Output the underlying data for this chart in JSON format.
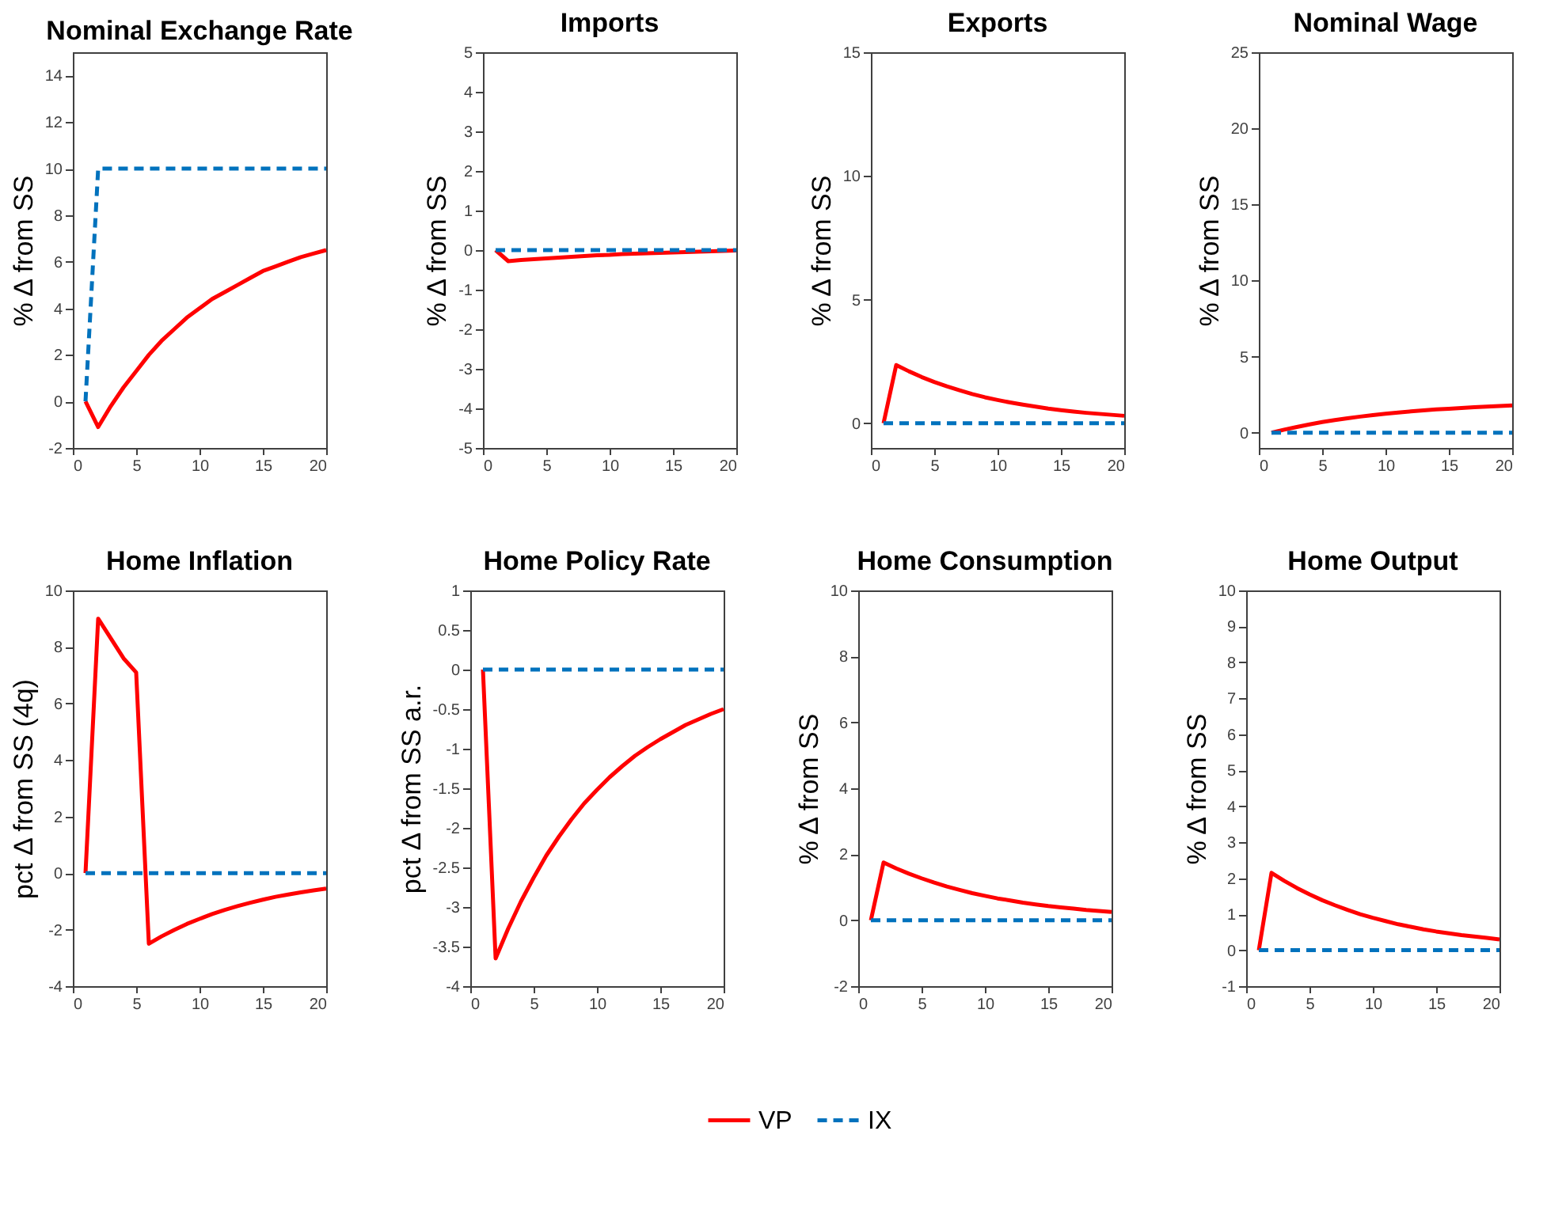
{
  "chart_data": [
    {
      "type": "line",
      "title": "Nominal Exchange Rate",
      "ylabel": "% Δ from SS",
      "x": [
        1,
        2,
        3,
        4,
        5,
        6,
        7,
        8,
        9,
        10,
        11,
        12,
        13,
        14,
        15,
        16,
        17,
        18,
        19,
        20
      ],
      "xlim": [
        0,
        20
      ],
      "xticks": [
        0,
        5,
        10,
        15,
        20
      ],
      "ylim": [
        -2,
        15
      ],
      "yticks": [
        -2,
        0,
        2,
        4,
        6,
        8,
        10,
        12,
        14
      ],
      "grid": false,
      "legend": "bottom",
      "series": [
        {
          "name": "VP",
          "color": "#ff0000",
          "line_style": "solid",
          "values": [
            0,
            -1.1,
            -0.2,
            0.6,
            1.3,
            2.0,
            2.6,
            3.1,
            3.6,
            4.0,
            4.4,
            4.7,
            5.0,
            5.3,
            5.6,
            5.8,
            6.0,
            6.2,
            6.35,
            6.5
          ]
        },
        {
          "name": "IX",
          "color": "#0072bd",
          "line_style": "dashed",
          "values": [
            0,
            10,
            10,
            10,
            10,
            10,
            10,
            10,
            10,
            10,
            10,
            10,
            10,
            10,
            10,
            10,
            10,
            10,
            10,
            10
          ]
        }
      ]
    },
    {
      "type": "line",
      "title": "Imports",
      "ylabel": "% Δ from SS",
      "x": [
        1,
        2,
        3,
        4,
        5,
        6,
        7,
        8,
        9,
        10,
        11,
        12,
        13,
        14,
        15,
        16,
        17,
        18,
        19,
        20
      ],
      "xlim": [
        0,
        20
      ],
      "xticks": [
        0,
        5,
        10,
        15,
        20
      ],
      "ylim": [
        -5,
        5
      ],
      "yticks": [
        -5,
        -4,
        -3,
        -2,
        -1,
        0,
        1,
        2,
        3,
        4,
        5
      ],
      "grid": false,
      "legend": "bottom",
      "series": [
        {
          "name": "VP",
          "color": "#ff0000",
          "line_style": "solid",
          "values": [
            0,
            -0.28,
            -0.25,
            -0.23,
            -0.21,
            -0.19,
            -0.17,
            -0.15,
            -0.13,
            -0.12,
            -0.1,
            -0.09,
            -0.08,
            -0.07,
            -0.06,
            -0.05,
            -0.04,
            -0.03,
            -0.02,
            -0.01
          ]
        },
        {
          "name": "IX",
          "color": "#0072bd",
          "line_style": "dashed",
          "values": [
            0,
            0,
            0,
            0,
            0,
            0,
            0,
            0,
            0,
            0,
            0,
            0,
            0,
            0,
            0,
            0,
            0,
            0,
            0,
            0
          ]
        }
      ]
    },
    {
      "type": "line",
      "title": "Exports",
      "ylabel": "% Δ from SS",
      "x": [
        1,
        2,
        3,
        4,
        5,
        6,
        7,
        8,
        9,
        10,
        11,
        12,
        13,
        14,
        15,
        16,
        17,
        18,
        19,
        20
      ],
      "xlim": [
        0,
        20
      ],
      "xticks": [
        0,
        5,
        10,
        15,
        20
      ],
      "ylim": [
        -1,
        15
      ],
      "yticks": [
        0,
        5,
        10,
        15
      ],
      "grid": false,
      "legend": "bottom",
      "series": [
        {
          "name": "VP",
          "color": "#ff0000",
          "line_style": "solid",
          "values": [
            0,
            2.35,
            2.1,
            1.87,
            1.67,
            1.49,
            1.33,
            1.18,
            1.05,
            0.94,
            0.84,
            0.75,
            0.67,
            0.59,
            0.53,
            0.47,
            0.42,
            0.38,
            0.34,
            0.3
          ]
        },
        {
          "name": "IX",
          "color": "#0072bd",
          "line_style": "dashed",
          "values": [
            0,
            0,
            0,
            0,
            0,
            0,
            0,
            0,
            0,
            0,
            0,
            0,
            0,
            0,
            0,
            0,
            0,
            0,
            0,
            0
          ]
        }
      ]
    },
    {
      "type": "line",
      "title": "Nominal Wage",
      "ylabel": "% Δ from SS",
      "x": [
        1,
        2,
        3,
        4,
        5,
        6,
        7,
        8,
        9,
        10,
        11,
        12,
        13,
        14,
        15,
        16,
        17,
        18,
        19,
        20
      ],
      "xlim": [
        0,
        20
      ],
      "xticks": [
        0,
        5,
        10,
        15,
        20
      ],
      "ylim": [
        -1,
        25
      ],
      "yticks": [
        0,
        5,
        10,
        15,
        20,
        25
      ],
      "grid": false,
      "legend": "bottom",
      "series": [
        {
          "name": "VP",
          "color": "#ff0000",
          "line_style": "solid",
          "values": [
            0,
            0.2,
            0.38,
            0.55,
            0.7,
            0.83,
            0.95,
            1.06,
            1.16,
            1.25,
            1.33,
            1.4,
            1.47,
            1.53,
            1.58,
            1.63,
            1.68,
            1.72,
            1.76,
            1.8
          ]
        },
        {
          "name": "IX",
          "color": "#0072bd",
          "line_style": "dashed",
          "values": [
            0,
            0,
            0,
            0,
            0,
            0,
            0,
            0,
            0,
            0,
            0,
            0,
            0,
            0,
            0,
            0,
            0,
            0,
            0,
            0
          ]
        }
      ]
    },
    {
      "type": "line",
      "title": "Home Inflation",
      "ylabel": "pct  Δ from SS (4q)",
      "x": [
        1,
        2,
        3,
        4,
        5,
        6,
        7,
        8,
        9,
        10,
        11,
        12,
        13,
        14,
        15,
        16,
        17,
        18,
        19,
        20
      ],
      "xlim": [
        0,
        20
      ],
      "xticks": [
        0,
        5,
        10,
        15,
        20
      ],
      "ylim": [
        -4,
        10
      ],
      "yticks": [
        -4,
        -2,
        0,
        2,
        4,
        6,
        8,
        10
      ],
      "grid": false,
      "legend": "bottom",
      "series": [
        {
          "name": "VP",
          "color": "#ff0000",
          "line_style": "solid",
          "values": [
            0,
            9.0,
            8.3,
            7.6,
            7.1,
            -2.5,
            -2.24,
            -2.01,
            -1.8,
            -1.62,
            -1.45,
            -1.3,
            -1.17,
            -1.05,
            -0.94,
            -0.84,
            -0.76,
            -0.68,
            -0.61,
            -0.55
          ]
        },
        {
          "name": "IX",
          "color": "#0072bd",
          "line_style": "dashed",
          "values": [
            0,
            0,
            0,
            0,
            0,
            0,
            0,
            0,
            0,
            0,
            0,
            0,
            0,
            0,
            0,
            0,
            0,
            0,
            0,
            0
          ]
        }
      ]
    },
    {
      "type": "line",
      "title": "Home Policy Rate",
      "ylabel": "pct  Δ from SS a.r.",
      "x": [
        1,
        2,
        3,
        4,
        5,
        6,
        7,
        8,
        9,
        10,
        11,
        12,
        13,
        14,
        15,
        16,
        17,
        18,
        19,
        20
      ],
      "xlim": [
        0,
        20
      ],
      "xticks": [
        0,
        5,
        10,
        15,
        20
      ],
      "ylim": [
        -4,
        1
      ],
      "yticks": [
        -4,
        -3.5,
        -3,
        -2.5,
        -2,
        -1.5,
        -1,
        -0.5,
        0,
        0.5,
        1
      ],
      "grid": false,
      "legend": "bottom",
      "series": [
        {
          "name": "VP",
          "color": "#ff0000",
          "line_style": "solid",
          "values": [
            0,
            -3.65,
            -3.27,
            -2.93,
            -2.63,
            -2.35,
            -2.11,
            -1.89,
            -1.69,
            -1.52,
            -1.36,
            -1.22,
            -1.09,
            -0.98,
            -0.88,
            -0.79,
            -0.7,
            -0.63,
            -0.56,
            -0.5
          ]
        },
        {
          "name": "IX",
          "color": "#0072bd",
          "line_style": "dashed",
          "values": [
            0,
            0,
            0,
            0,
            0,
            0,
            0,
            0,
            0,
            0,
            0,
            0,
            0,
            0,
            0,
            0,
            0,
            0,
            0,
            0
          ]
        }
      ]
    },
    {
      "type": "line",
      "title": "Home Consumption",
      "ylabel": "% Δ from SS",
      "x": [
        1,
        2,
        3,
        4,
        5,
        6,
        7,
        8,
        9,
        10,
        11,
        12,
        13,
        14,
        15,
        16,
        17,
        18,
        19,
        20
      ],
      "xlim": [
        0,
        20
      ],
      "xticks": [
        0,
        5,
        10,
        15,
        20
      ],
      "ylim": [
        -2,
        10
      ],
      "yticks": [
        -2,
        0,
        2,
        4,
        6,
        8,
        10
      ],
      "grid": false,
      "legend": "bottom",
      "series": [
        {
          "name": "VP",
          "color": "#ff0000",
          "line_style": "solid",
          "values": [
            0,
            1.75,
            1.57,
            1.41,
            1.27,
            1.14,
            1.02,
            0.92,
            0.82,
            0.74,
            0.66,
            0.6,
            0.53,
            0.48,
            0.43,
            0.39,
            0.35,
            0.31,
            0.28,
            0.25
          ]
        },
        {
          "name": "IX",
          "color": "#0072bd",
          "line_style": "dashed",
          "values": [
            0,
            0,
            0,
            0,
            0,
            0,
            0,
            0,
            0,
            0,
            0,
            0,
            0,
            0,
            0,
            0,
            0,
            0,
            0,
            0
          ]
        }
      ]
    },
    {
      "type": "line",
      "title": "Home Output",
      "ylabel": "% Δ from SS",
      "x": [
        1,
        2,
        3,
        4,
        5,
        6,
        7,
        8,
        9,
        10,
        11,
        12,
        13,
        14,
        15,
        16,
        17,
        18,
        19,
        20
      ],
      "xlim": [
        0,
        20
      ],
      "xticks": [
        0,
        5,
        10,
        15,
        20
      ],
      "ylim": [
        -1,
        10
      ],
      "yticks": [
        -1,
        0,
        1,
        2,
        3,
        4,
        5,
        6,
        7,
        8,
        9,
        10
      ],
      "grid": false,
      "legend": "bottom",
      "series": [
        {
          "name": "VP",
          "color": "#ff0000",
          "line_style": "solid",
          "values": [
            0,
            2.15,
            1.93,
            1.73,
            1.55,
            1.39,
            1.25,
            1.12,
            1.0,
            0.9,
            0.81,
            0.72,
            0.65,
            0.58,
            0.52,
            0.47,
            0.42,
            0.38,
            0.34,
            0.3
          ]
        },
        {
          "name": "IX",
          "color": "#0072bd",
          "line_style": "dashed",
          "values": [
            0,
            0,
            0,
            0,
            0,
            0,
            0,
            0,
            0,
            0,
            0,
            0,
            0,
            0,
            0,
            0,
            0,
            0,
            0,
            0
          ]
        }
      ]
    }
  ]
}
